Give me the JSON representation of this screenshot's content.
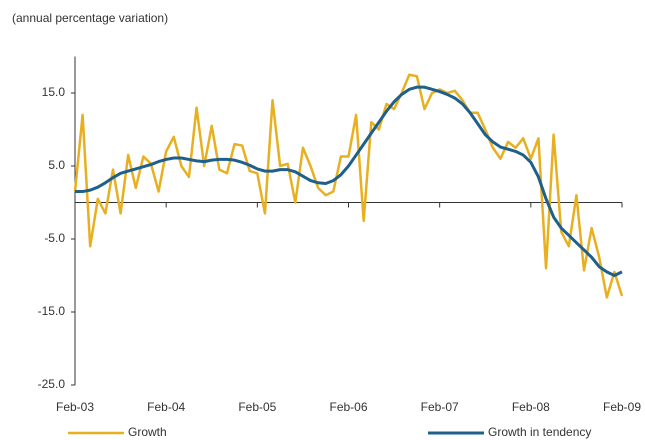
{
  "chart_data": {
    "type": "line",
    "subtitle": "(annual percentage variation)",
    "categories": [
      "Feb-03",
      null,
      null,
      null,
      null,
      null,
      null,
      null,
      null,
      null,
      null,
      null,
      "Feb-04",
      null,
      null,
      null,
      null,
      null,
      null,
      null,
      null,
      null,
      null,
      null,
      "Feb-05",
      null,
      null,
      null,
      null,
      null,
      null,
      null,
      null,
      null,
      null,
      null,
      "Feb-06",
      null,
      null,
      null,
      null,
      null,
      null,
      null,
      null,
      null,
      null,
      null,
      "Feb-07",
      null,
      null,
      null,
      null,
      null,
      null,
      null,
      null,
      null,
      null,
      null,
      "Feb-08",
      null,
      null,
      null,
      null,
      null,
      null,
      null,
      null,
      null,
      null,
      null,
      "Feb-09"
    ],
    "series": [
      {
        "name": "Growth",
        "color": "#e8b020",
        "values": [
          1.5,
          12,
          -6,
          0.5,
          -1.5,
          4.5,
          -1.5,
          6.5,
          2,
          6.3,
          5.3,
          1.5,
          7,
          9,
          5,
          3.5,
          13,
          5,
          10.5,
          4.5,
          4,
          8,
          7.8,
          4.3,
          4,
          -1.5,
          14,
          5,
          5.3,
          0,
          7.5,
          5,
          2,
          1,
          1.5,
          6.3,
          6.3,
          12,
          -2.5,
          11,
          10,
          13.5,
          12.8,
          15,
          17.5,
          17.3,
          12.8,
          15,
          15.5,
          15,
          15.3,
          14,
          12.3,
          12.3,
          10,
          7.5,
          6,
          8.3,
          7.5,
          8.8,
          6,
          8.8,
          -9,
          9.3,
          -4,
          -6,
          1,
          -9.3,
          -3.5,
          -7.5,
          -13,
          -9.5,
          -12.8
        ]
      },
      {
        "name": "Growth in tendency",
        "color": "#1f5f8b",
        "values": [
          1.5,
          1.5,
          1.7,
          2.1,
          2.7,
          3.4,
          4,
          4.3,
          4.6,
          4.9,
          5.2,
          5.6,
          5.9,
          6.1,
          6.1,
          5.9,
          5.7,
          5.6,
          5.8,
          5.9,
          5.9,
          5.8,
          5.5,
          5.1,
          4.6,
          4.3,
          4.3,
          4.5,
          4.5,
          4.2,
          3.6,
          3,
          2.7,
          2.6,
          3,
          3.8,
          5,
          6.5,
          8,
          9.5,
          11,
          12.5,
          13.8,
          14.8,
          15.5,
          15.8,
          15.8,
          15.5,
          15.2,
          14.8,
          14.3,
          13.5,
          12.3,
          10.8,
          9.3,
          8.3,
          7.6,
          7.3,
          7,
          6.5,
          5.5,
          3.5,
          0.5,
          -2,
          -3.5,
          -4.5,
          -5.5,
          -6.5,
          -7.5,
          -8.8,
          -9.5,
          -10,
          -9.5
        ]
      }
    ],
    "ylim": [
      -25,
      20
    ],
    "yticks": [
      {
        "value": 15,
        "label": "15.0"
      },
      {
        "value": 5,
        "label": "5.0"
      },
      {
        "value": -5,
        "label": "-5.0"
      },
      {
        "value": -15,
        "label": "-15.0"
      },
      {
        "value": -25,
        "label": "-25.0"
      }
    ],
    "grid": false
  }
}
